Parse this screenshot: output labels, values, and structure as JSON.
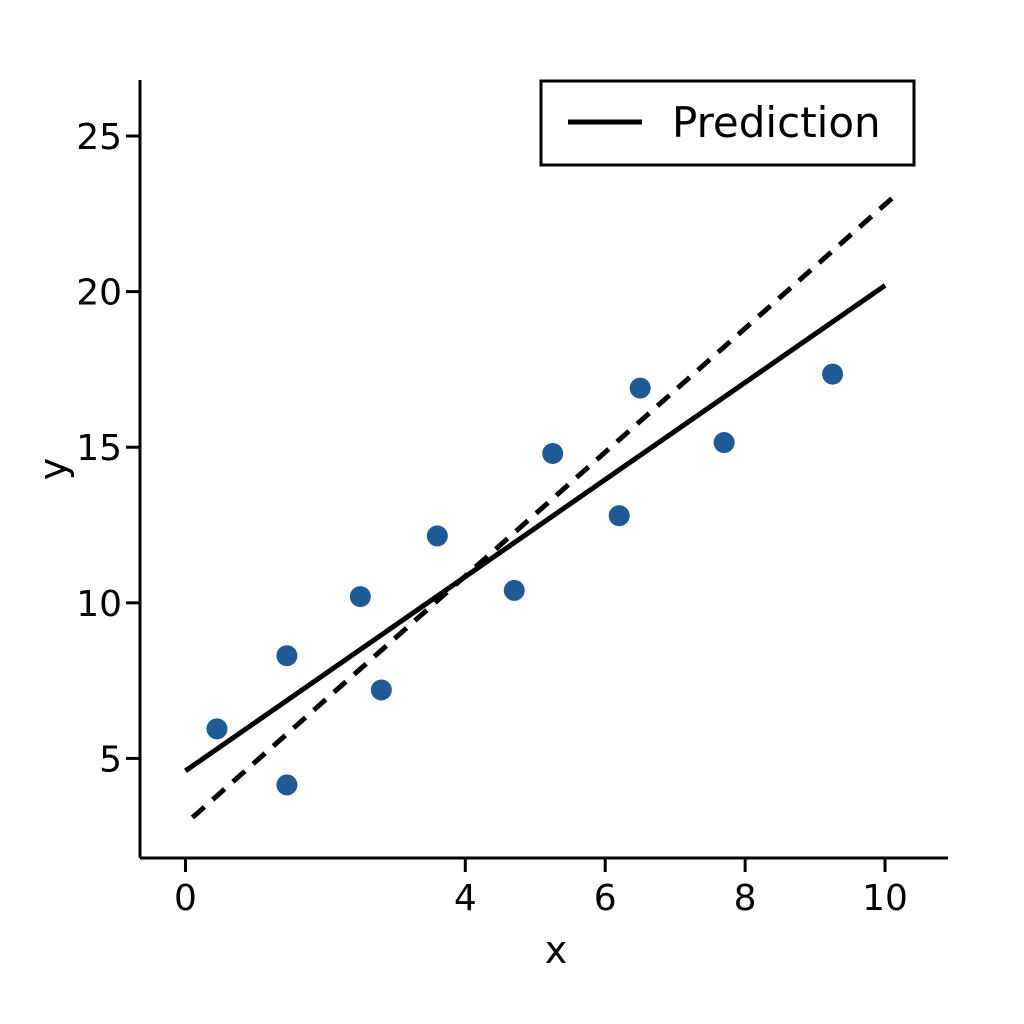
{
  "chart_data": {
    "type": "scatter",
    "title": "",
    "xlabel": "x",
    "ylabel": "y",
    "xlim": [
      -0.65,
      10.9
    ],
    "ylim": [
      1.8,
      26.8
    ],
    "x_ticks": [
      0,
      4,
      6,
      8,
      10
    ],
    "x_tick_labels": [
      "0",
      "4",
      "6",
      "8",
      "10"
    ],
    "y_ticks": [
      5,
      10,
      15,
      20,
      25
    ],
    "y_tick_labels": [
      "5",
      "10",
      "15",
      "20",
      "25"
    ],
    "grid": false,
    "legend_placement": "top-right",
    "legend": [
      {
        "label": "Prediction",
        "style": "solid",
        "color": "#000000"
      }
    ],
    "points": {
      "color": "#1f5a94",
      "x": [
        0.45,
        1.45,
        1.45,
        2.5,
        2.8,
        3.6,
        4.7,
        5.25,
        6.2,
        6.5,
        7.7,
        9.25
      ],
      "y": [
        5.95,
        4.15,
        8.3,
        10.2,
        7.2,
        12.15,
        10.4,
        14.8,
        12.8,
        16.9,
        15.15,
        17.35
      ]
    },
    "lines": [
      {
        "style": "solid",
        "color": "#000000",
        "x": [
          0,
          10
        ],
        "y": [
          4.6,
          20.2
        ]
      },
      {
        "style": "dashed",
        "color": "#000000",
        "x": [
          0.1,
          10.15
        ],
        "y": [
          3.1,
          23.1
        ]
      }
    ]
  }
}
